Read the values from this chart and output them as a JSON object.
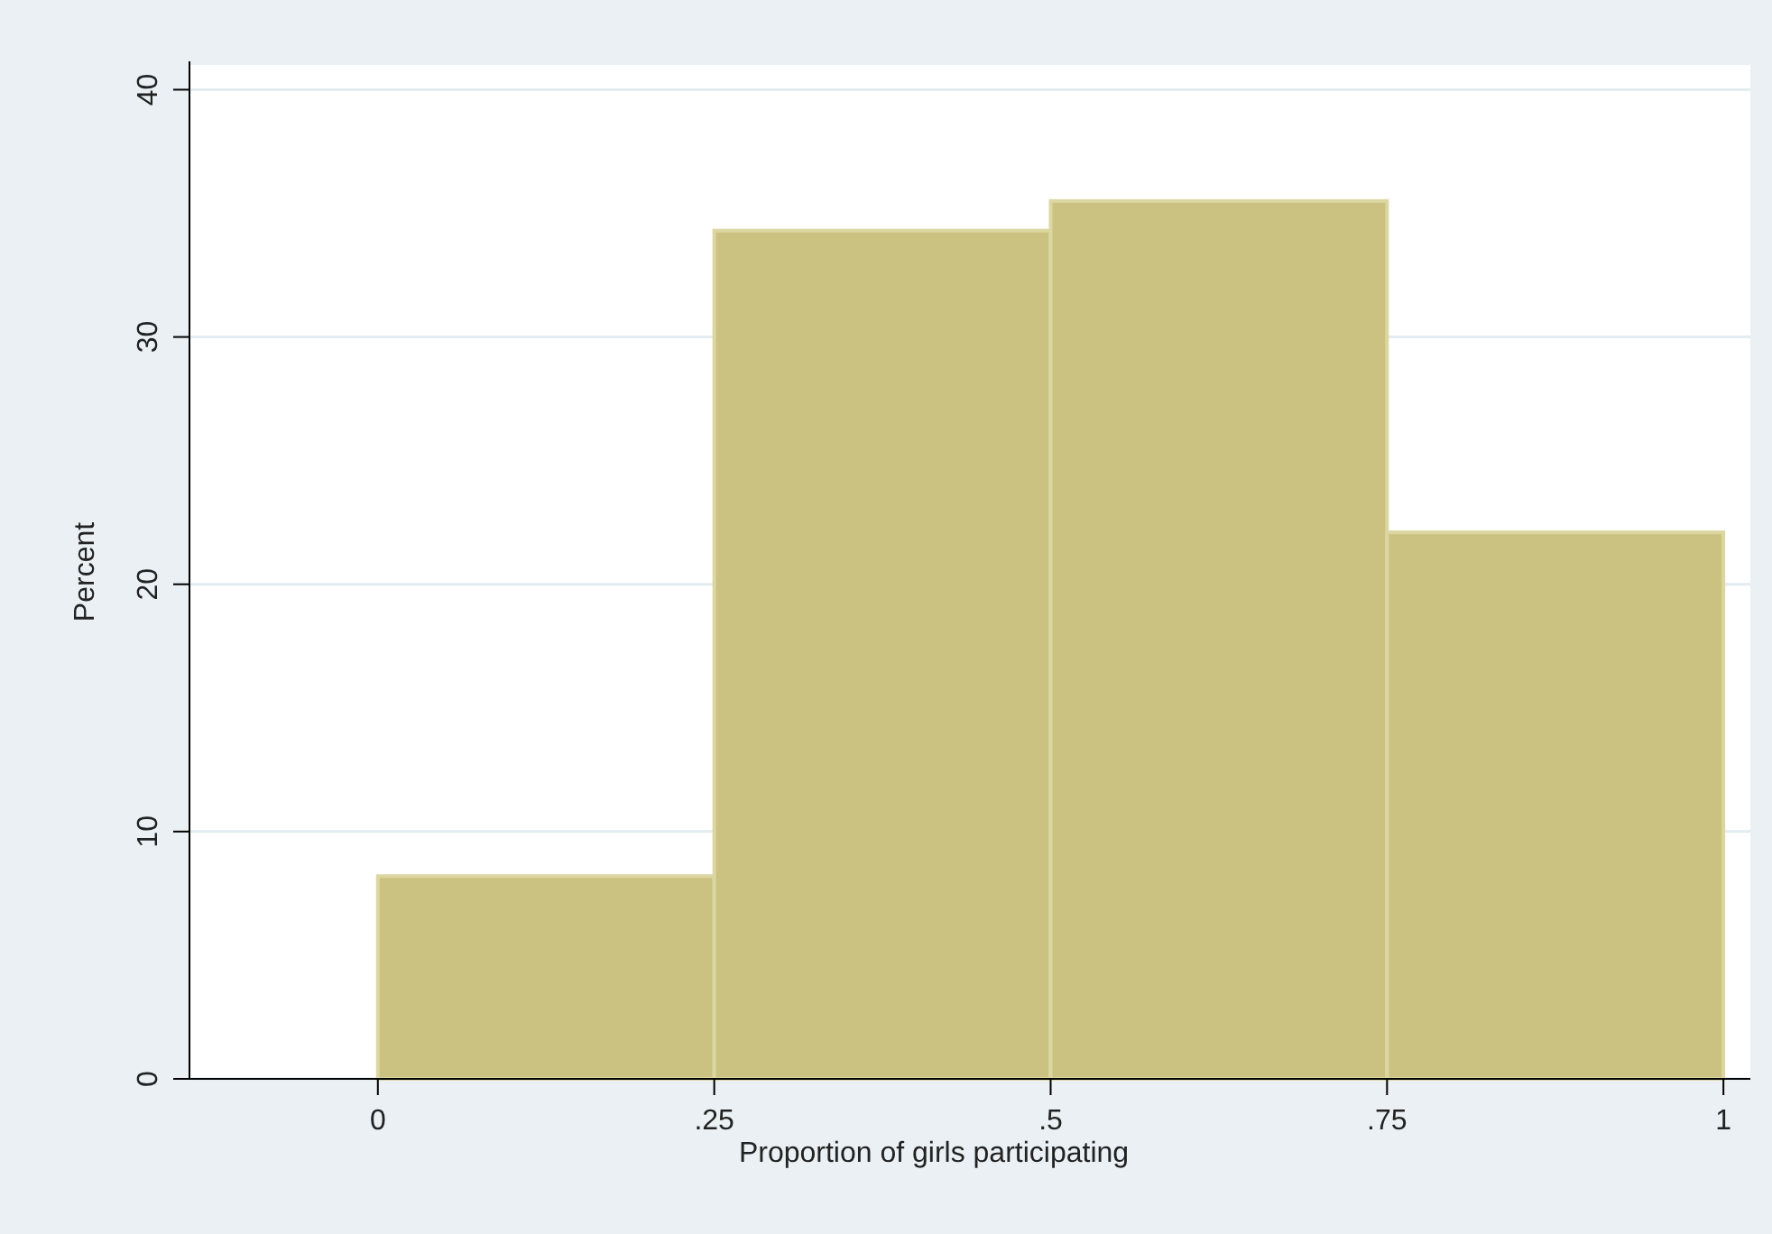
{
  "chart_data": {
    "type": "histogram",
    "xlabel": "Proportion of girls participating",
    "ylabel": "Percent",
    "bins": [
      0,
      0.25,
      0.5,
      0.75,
      1
    ],
    "values": [
      8.2,
      34.3,
      35.5,
      22.1
    ],
    "color": "#cbc281",
    "xlim": [
      -0.14,
      1.02
    ],
    "ylim": [
      0,
      41
    ],
    "xticks": [
      0,
      {
        "value": 0.25,
        "label": ".25"
      },
      {
        "value": 0.5,
        "label": ".5"
      },
      {
        "value": 0.75,
        "label": ".75"
      },
      1
    ],
    "yticks": [
      0,
      10,
      20,
      30,
      40
    ],
    "grid": "y"
  }
}
